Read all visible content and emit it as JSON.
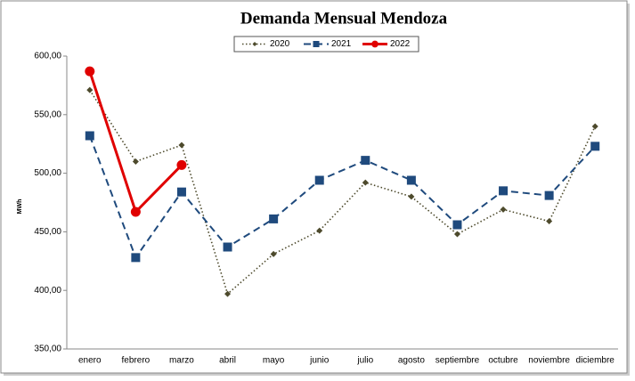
{
  "chart_data": {
    "type": "line",
    "title": "Demanda Mensual Mendoza",
    "y_label": "MWh",
    "categories": [
      "enero",
      "febrero",
      "marzo",
      "abril",
      "mayo",
      "junio",
      "julio",
      "agosto",
      "septiembre",
      "octubre",
      "noviembre",
      "diciembre"
    ],
    "series": [
      {
        "name": "2020",
        "color": "#4d4a2c",
        "line_style": "dotted",
        "marker": "diamond",
        "values": [
          571,
          510,
          524,
          397,
          431,
          451,
          492,
          480,
          448,
          469,
          459,
          540
        ]
      },
      {
        "name": "2021",
        "color": "#1f4a7d",
        "line_style": "dashed",
        "marker": "square",
        "values": [
          532,
          428,
          484,
          437,
          461,
          494,
          511,
          494,
          456,
          485,
          481,
          523
        ]
      },
      {
        "name": "2022",
        "color": "#e00000",
        "line_style": "solid",
        "marker": "circle",
        "values": [
          587,
          467,
          507,
          null,
          null,
          null,
          null,
          null,
          null,
          null,
          null,
          null
        ]
      }
    ],
    "ylim": [
      350,
      600
    ],
    "yticks": [
      {
        "value": 350,
        "label": "350,00"
      },
      {
        "value": 400,
        "label": "400,00"
      },
      {
        "value": 450,
        "label": "450,00"
      },
      {
        "value": 500,
        "label": "500,00"
      },
      {
        "value": 550,
        "label": "550,00"
      },
      {
        "value": 600,
        "label": "600,00"
      }
    ],
    "grid": false,
    "legend": "top"
  }
}
